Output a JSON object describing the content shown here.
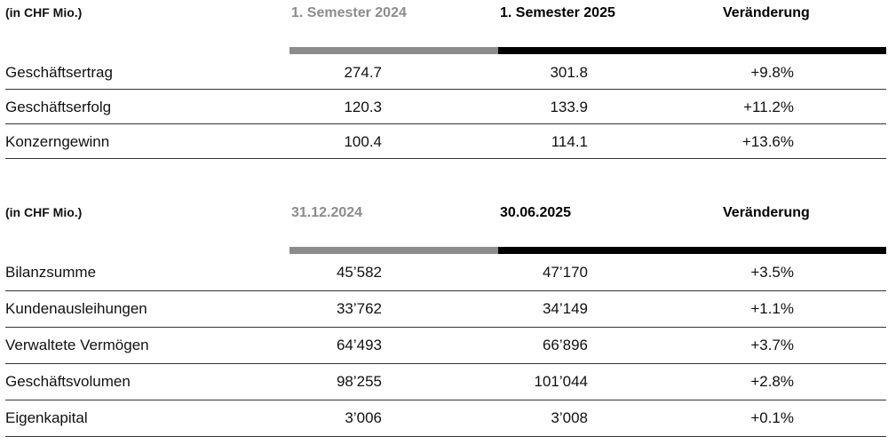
{
  "table1": {
    "unit": "(in CHF Mio.)",
    "col1": "1. Semester 2024",
    "col2": "1. Semester 2025",
    "col3": "Veränderung",
    "rows": [
      {
        "label": "Geschäftsertrag",
        "v1": "274.7",
        "v2": "301.8",
        "change": "+9.8%"
      },
      {
        "label": "Geschäftserfolg",
        "v1": "120.3",
        "v2": "133.9",
        "change": "+11.2%"
      },
      {
        "label": "Konzerngewinn",
        "v1": "100.4",
        "v2": "114.1",
        "change": "+13.6%"
      }
    ]
  },
  "table2": {
    "unit": "(in CHF Mio.)",
    "col1": "31.12.2024",
    "col2": "30.06.2025",
    "col3": "Veränderung",
    "rows": [
      {
        "label": "Bilanzsumme",
        "v1": "45’582",
        "v2": "47’170",
        "change": "+3.5%"
      },
      {
        "label": "Kundenausleihungen",
        "v1": "33’762",
        "v2": "34’149",
        "change": "+1.1%"
      },
      {
        "label": "Verwaltete Vermögen",
        "v1": "64’493",
        "v2": "66’896",
        "change": "+3.7%"
      },
      {
        "label": "Geschäftsvolumen",
        "v1": "98’255",
        "v2": "101’044",
        "change": "+2.8%"
      },
      {
        "label": "Eigenkapital",
        "v1": "3’006",
        "v2": "3’008",
        "change": "+0.1%"
      }
    ]
  },
  "colors": {
    "previous_period": "#8c8c8c",
    "current_period": "#000000"
  }
}
